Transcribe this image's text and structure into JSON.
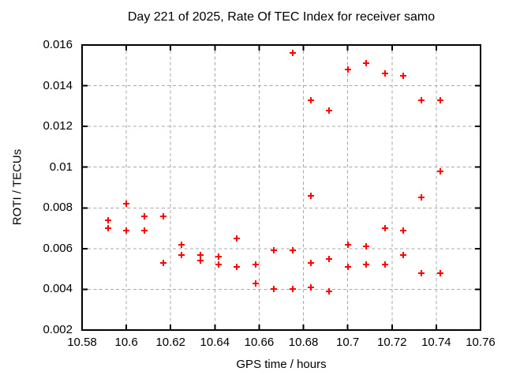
{
  "chart_data": {
    "type": "scatter",
    "title": "Day 221 of 2025, Rate Of TEC Index for receiver samo",
    "xlabel": "GPS time / hours",
    "ylabel": "ROTI / TECUs",
    "xlim": [
      10.58,
      10.76
    ],
    "ylim": [
      0.002,
      0.016
    ],
    "x_ticks": [
      10.58,
      10.6,
      10.62,
      10.64,
      10.66,
      10.68,
      10.7,
      10.72,
      10.74,
      10.76
    ],
    "x_tick_labels": [
      "10.58",
      "10.6",
      "10.62",
      "10.64",
      "10.66",
      "10.68",
      "10.7",
      "10.72",
      "10.74",
      "10.76"
    ],
    "y_ticks": [
      0.002,
      0.004,
      0.006,
      0.008,
      0.01,
      0.012,
      0.014,
      0.016
    ],
    "y_tick_labels": [
      "0.002",
      "0.004",
      "0.006",
      "0.008",
      "0.01",
      "0.012",
      "0.014",
      "0.016"
    ],
    "grid": true,
    "legend": false,
    "marker": "plus",
    "marker_color": "#ff0000",
    "grid_color": "#a8a8a8",
    "border_color": "#000000",
    "points": [
      [
        10.5917,
        0.0074
      ],
      [
        10.5917,
        0.007
      ],
      [
        10.6,
        0.0082
      ],
      [
        10.6,
        0.0069
      ],
      [
        10.6083,
        0.0076
      ],
      [
        10.6083,
        0.0069
      ],
      [
        10.6167,
        0.0076
      ],
      [
        10.6167,
        0.0053
      ],
      [
        10.625,
        0.0062
      ],
      [
        10.625,
        0.0057
      ],
      [
        10.6333,
        0.0057
      ],
      [
        10.6333,
        0.0054
      ],
      [
        10.6417,
        0.0056
      ],
      [
        10.6417,
        0.0052
      ],
      [
        10.65,
        0.0065
      ],
      [
        10.65,
        0.0051
      ],
      [
        10.6583,
        0.0052
      ],
      [
        10.6583,
        0.0043
      ],
      [
        10.6667,
        0.0059
      ],
      [
        10.6667,
        0.004
      ],
      [
        10.675,
        0.0156
      ],
      [
        10.675,
        0.0059
      ],
      [
        10.675,
        0.004
      ],
      [
        10.6833,
        0.0133
      ],
      [
        10.6833,
        0.0086
      ],
      [
        10.6833,
        0.0053
      ],
      [
        10.6833,
        0.0041
      ],
      [
        10.6917,
        0.0128
      ],
      [
        10.6917,
        0.0055
      ],
      [
        10.6917,
        0.0039
      ],
      [
        10.7,
        0.0148
      ],
      [
        10.7,
        0.0062
      ],
      [
        10.7,
        0.0051
      ],
      [
        10.7083,
        0.0151
      ],
      [
        10.7083,
        0.0061
      ],
      [
        10.7083,
        0.0052
      ],
      [
        10.7167,
        0.0146
      ],
      [
        10.7167,
        0.007
      ],
      [
        10.7167,
        0.0052
      ],
      [
        10.725,
        0.0145
      ],
      [
        10.725,
        0.0069
      ],
      [
        10.725,
        0.0057
      ],
      [
        10.7333,
        0.0133
      ],
      [
        10.7333,
        0.0085
      ],
      [
        10.7333,
        0.0048
      ],
      [
        10.7417,
        0.0133
      ],
      [
        10.7417,
        0.0098
      ],
      [
        10.7417,
        0.0048
      ]
    ]
  }
}
